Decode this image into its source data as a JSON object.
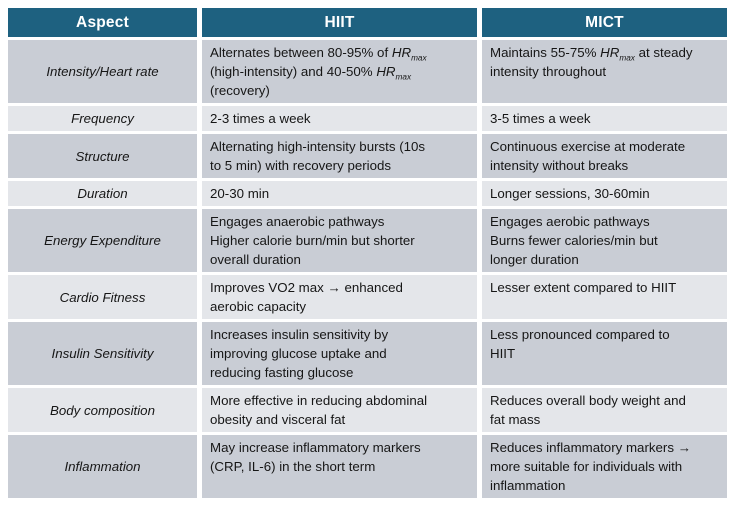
{
  "colors": {
    "header_bg": "#1E6180",
    "header_fg": "#FFFFFF",
    "row_dark": "#C9CDD5",
    "row_light": "#E4E6EA",
    "text": "#161616",
    "page_bg": "#FFFFFF"
  },
  "table": {
    "header": {
      "aspect": "Aspect",
      "hiit": "HIIT",
      "mict": "MICT"
    },
    "rows": [
      {
        "aspect": "Intensity/Heart rate",
        "hiit": [
          {
            "t": "Alternates between 80-95% of "
          },
          {
            "t": "HR",
            "em": true
          },
          {
            "t": "max",
            "em": true,
            "sub": true
          },
          {
            "t": "\n(high-intensity) and 40-50% "
          },
          {
            "t": "HR",
            "em": true
          },
          {
            "t": "max",
            "em": true,
            "sub": true
          },
          {
            "t": "\n(recovery)"
          }
        ],
        "mict": [
          {
            "t": "Maintains 55-75% "
          },
          {
            "t": "HR",
            "em": true
          },
          {
            "t": "max",
            "em": true,
            "sub": true
          },
          {
            "t": " at steady\nintensity throughout"
          }
        ]
      },
      {
        "aspect": "Frequency",
        "hiit": [
          {
            "t": "2-3 times a week"
          }
        ],
        "mict": [
          {
            "t": "3-5 times a week"
          }
        ]
      },
      {
        "aspect": "Structure",
        "hiit": [
          {
            "t": "Alternating high-intensity bursts (10s\nto 5 min) with recovery periods"
          }
        ],
        "mict": [
          {
            "t": "Continuous exercise at moderate\nintensity without breaks"
          }
        ]
      },
      {
        "aspect": "Duration",
        "hiit": [
          {
            "t": "20-30 min"
          }
        ],
        "mict": [
          {
            "t": "Longer sessions, 30-60min"
          }
        ]
      },
      {
        "aspect": "Energy Expenditure",
        "hiit": [
          {
            "t": "Engages anaerobic pathways\nHigher calorie burn/min but shorter\noverall duration"
          }
        ],
        "mict": [
          {
            "t": "Engages aerobic pathways\nBurns fewer calories/min but\nlonger duration"
          }
        ]
      },
      {
        "aspect": "Cardio Fitness",
        "hiit": [
          {
            "t": "Improves VO2 max → enhanced\naerobic capacity"
          }
        ],
        "mict": [
          {
            "t": "Lesser extent compared to HIIT"
          }
        ]
      },
      {
        "aspect": "Insulin Sensitivity",
        "hiit": [
          {
            "t": "Increases insulin sensitivity by\nimproving glucose uptake and\nreducing fasting glucose"
          }
        ],
        "mict": [
          {
            "t": "Less pronounced compared to\nHIIT"
          }
        ]
      },
      {
        "aspect": "Body composition",
        "hiit": [
          {
            "t": "More effective in reducing abdominal\nobesity and visceral fat"
          }
        ],
        "mict": [
          {
            "t": "Reduces overall body weight and\nfat mass"
          }
        ]
      },
      {
        "aspect": "Inflammation",
        "hiit": [
          {
            "t": "May increase inflammatory markers\n(CRP, IL-6) in the short term"
          }
        ],
        "mict": [
          {
            "t": "Reduces inflammatory markers →\nmore suitable for individuals with\ninflammation"
          }
        ]
      }
    ]
  }
}
